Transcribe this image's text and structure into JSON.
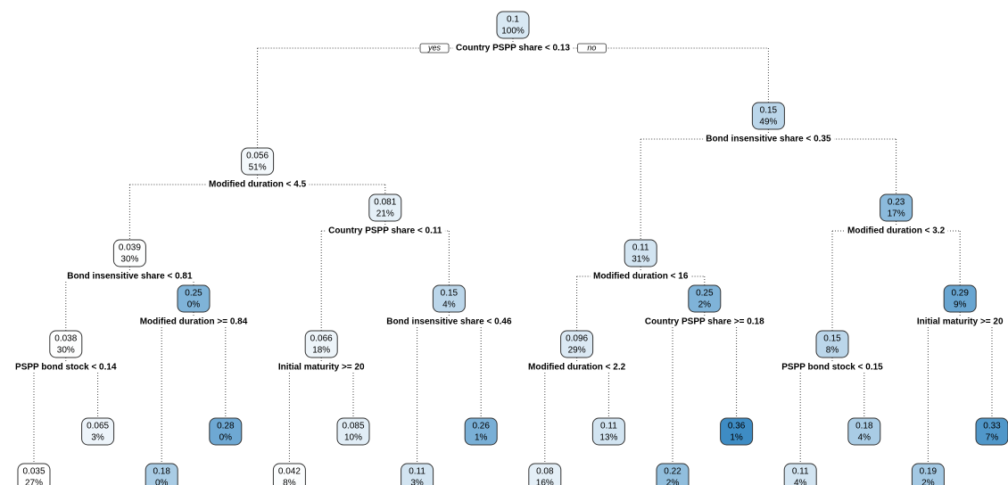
{
  "branch_labels": {
    "yes": "yes",
    "no": "no"
  },
  "tree": {
    "value": 0.1,
    "percent": "100%",
    "split": "Country PSPP share < 0.13",
    "children": [
      {
        "value": 0.056,
        "percent": "51%",
        "split": "Modified duration < 4.5",
        "children": [
          {
            "value": 0.039,
            "percent": "30%",
            "split": "Bond insensitive share < 0.81",
            "children": [
              {
                "value": 0.038,
                "percent": "30%",
                "split": "PSPP bond stock < 0.14",
                "children": [
                  {
                    "value": 0.035,
                    "percent": "27%"
                  },
                  {
                    "value": 0.065,
                    "percent": "3%"
                  }
                ]
              },
              {
                "value": 0.25,
                "percent": "0%",
                "split": "Modified duration >= 0.84",
                "children": [
                  {
                    "value": 0.18,
                    "percent": "0%"
                  },
                  {
                    "value": 0.28,
                    "percent": "0%"
                  }
                ]
              }
            ]
          },
          {
            "value": 0.081,
            "percent": "21%",
            "split": "Country PSPP share < 0.11",
            "children": [
              {
                "value": 0.066,
                "percent": "18%",
                "split": "Initial maturity >= 20",
                "children": [
                  {
                    "value": 0.042,
                    "percent": "8%"
                  },
                  {
                    "value": 0.085,
                    "percent": "10%"
                  }
                ]
              },
              {
                "value": 0.15,
                "percent": "4%",
                "split": "Bond insensitive share < 0.46",
                "children": [
                  {
                    "value": 0.11,
                    "percent": "3%"
                  },
                  {
                    "value": 0.26,
                    "percent": "1%"
                  }
                ]
              }
            ]
          }
        ]
      },
      {
        "value": 0.15,
        "percent": "49%",
        "split": "Bond insensitive share < 0.35",
        "children": [
          {
            "value": 0.11,
            "percent": "31%",
            "split": "Modified duration < 16",
            "children": [
              {
                "value": 0.096,
                "percent": "29%",
                "split": "Modified duration < 2.2",
                "children": [
                  {
                    "value": 0.08,
                    "percent": "16%"
                  },
                  {
                    "value": 0.11,
                    "percent": "13%"
                  }
                ]
              },
              {
                "value": 0.25,
                "percent": "2%",
                "split": "Country PSPP share >= 0.18",
                "children": [
                  {
                    "value": 0.22,
                    "percent": "2%"
                  },
                  {
                    "value": 0.36,
                    "percent": "1%"
                  }
                ]
              }
            ]
          },
          {
            "value": 0.23,
            "percent": "17%",
            "split": "Modified duration < 3.2",
            "children": [
              {
                "value": 0.15,
                "percent": "8%",
                "split": "PSPP bond stock < 0.15",
                "children": [
                  {
                    "value": 0.11,
                    "percent": "4%"
                  },
                  {
                    "value": 0.18,
                    "percent": "4%"
                  }
                ]
              },
              {
                "value": 0.29,
                "percent": "9%",
                "split": "Initial maturity >= 20",
                "children": [
                  {
                    "value": 0.19,
                    "percent": "2%"
                  },
                  {
                    "value": 0.33,
                    "percent": "7%"
                  }
                ]
              }
            ]
          }
        ]
      }
    ]
  }
}
